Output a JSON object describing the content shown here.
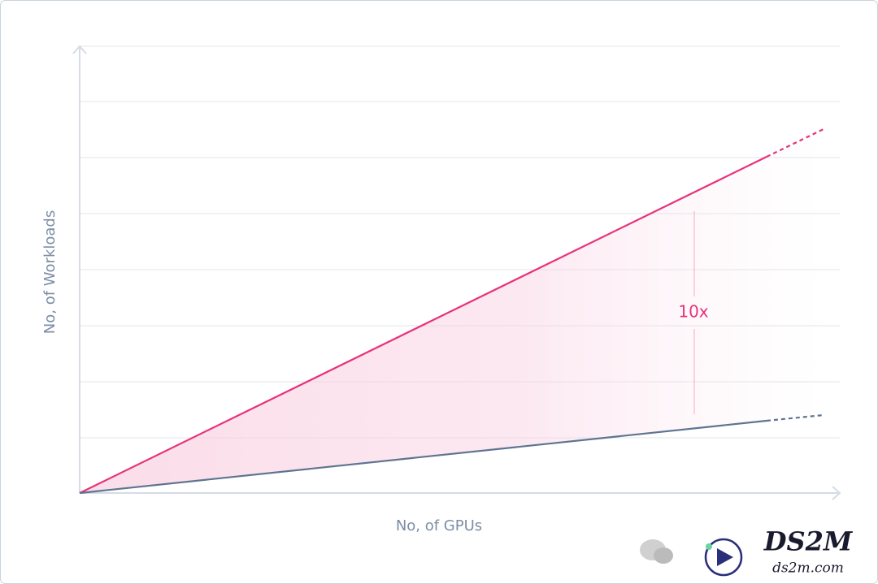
{
  "axes": {
    "y_label": "No, of Workloads",
    "x_label": "No, of GPUs"
  },
  "annotation": "10x",
  "watermark": {
    "title": "DS2M",
    "subtitle": "ds2m.com"
  }
}
